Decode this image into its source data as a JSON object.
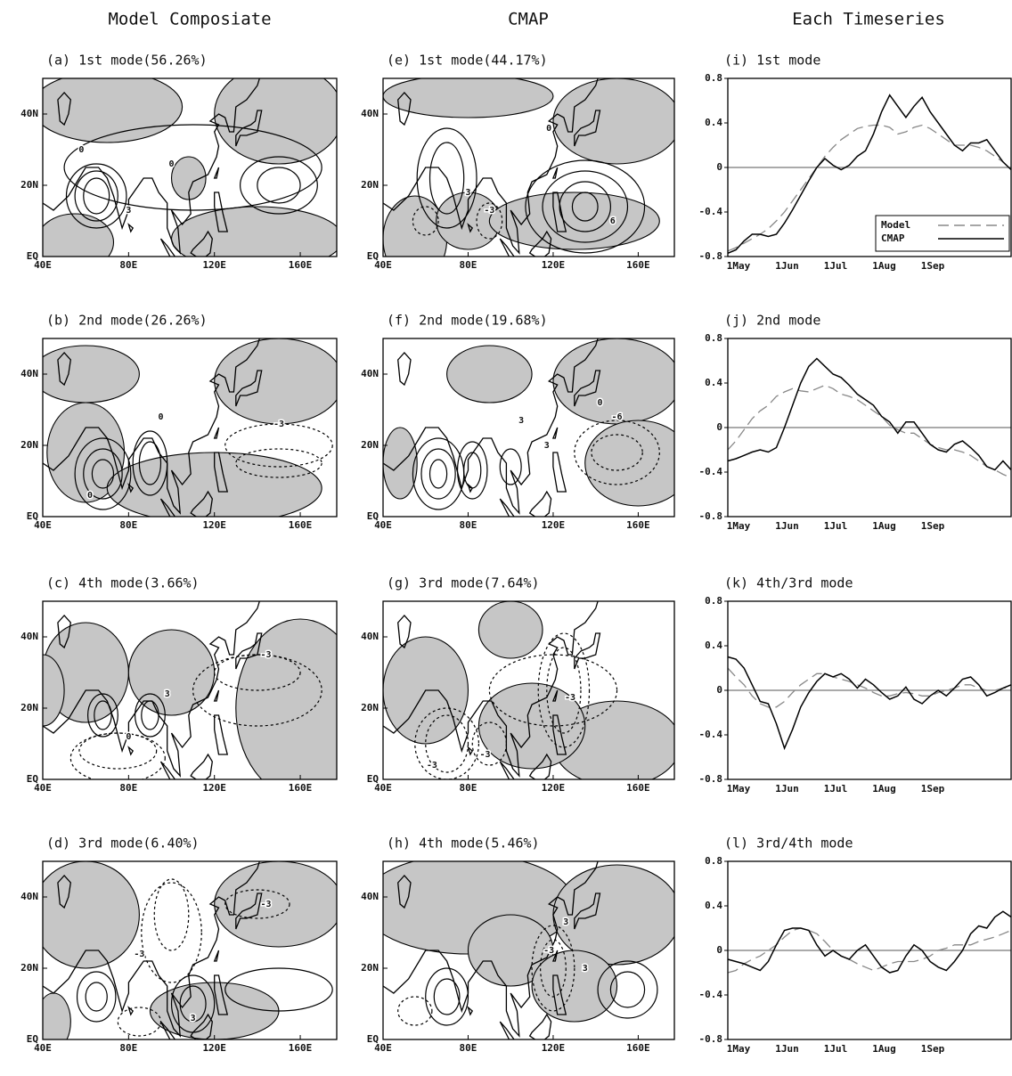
{
  "column_titles": [
    "Model Composiate",
    "CMAP",
    "Each Timeseries"
  ],
  "chart_data": [
    {
      "type": "map",
      "title": "(a) 1st mode(56.26%)",
      "xlim": [
        40,
        177
      ],
      "ylim": [
        0,
        50
      ],
      "xticks": [
        {
          "value": 40,
          "label": "40E"
        },
        {
          "value": 80,
          "label": "80E"
        },
        {
          "value": 120,
          "label": "120E"
        },
        {
          "value": 160,
          "label": "160E"
        }
      ],
      "yticks": [
        {
          "value": 0,
          "label": "EQ"
        },
        {
          "value": 20,
          "label": "20N"
        },
        {
          "value": 40,
          "label": "40N"
        }
      ],
      "shading_color": "#c6c6c6",
      "contour_labels": [
        "0",
        "0",
        "3"
      ]
    },
    {
      "type": "map",
      "title": "(b) 2nd mode(26.26%)",
      "xlim": [
        40,
        177
      ],
      "ylim": [
        0,
        50
      ],
      "xticks": [
        {
          "value": 40,
          "label": "40E"
        },
        {
          "value": 80,
          "label": "80E"
        },
        {
          "value": 120,
          "label": "120E"
        },
        {
          "value": 160,
          "label": "160E"
        }
      ],
      "yticks": [
        {
          "value": 0,
          "label": "EQ"
        },
        {
          "value": 20,
          "label": "20N"
        },
        {
          "value": 40,
          "label": "40N"
        }
      ],
      "shading_color": "#c6c6c6",
      "contour_labels": [
        "-3",
        "0",
        "0"
      ]
    },
    {
      "type": "map",
      "title": "(c) 4th mode(3.66%)",
      "xlim": [
        40,
        177
      ],
      "ylim": [
        0,
        50
      ],
      "xticks": [
        {
          "value": 40,
          "label": "40E"
        },
        {
          "value": 80,
          "label": "80E"
        },
        {
          "value": 120,
          "label": "120E"
        },
        {
          "value": 160,
          "label": "160E"
        }
      ],
      "yticks": [
        {
          "value": 0,
          "label": "EQ"
        },
        {
          "value": 20,
          "label": "20N"
        },
        {
          "value": 40,
          "label": "40N"
        }
      ],
      "shading_color": "#c6c6c6",
      "contour_labels": [
        "-3",
        "0",
        "3"
      ]
    },
    {
      "type": "map",
      "title": "(d) 3rd mode(6.40%)",
      "xlim": [
        40,
        177
      ],
      "ylim": [
        0,
        50
      ],
      "xticks": [
        {
          "value": 40,
          "label": "40E"
        },
        {
          "value": 80,
          "label": "80E"
        },
        {
          "value": 120,
          "label": "120E"
        },
        {
          "value": 160,
          "label": "160E"
        }
      ],
      "yticks": [
        {
          "value": 0,
          "label": "EQ"
        },
        {
          "value": 20,
          "label": "20N"
        },
        {
          "value": 40,
          "label": "40N"
        }
      ],
      "shading_color": "#c6c6c6",
      "contour_labels": [
        "-3",
        "-3",
        "3"
      ]
    },
    {
      "type": "map",
      "title": "(e) 1st mode(44.17%)",
      "xlim": [
        40,
        177
      ],
      "ylim": [
        0,
        50
      ],
      "xticks": [
        {
          "value": 40,
          "label": "40E"
        },
        {
          "value": 80,
          "label": "80E"
        },
        {
          "value": 120,
          "label": "120E"
        },
        {
          "value": 160,
          "label": "160E"
        }
      ],
      "yticks": [
        {
          "value": 0,
          "label": "EQ"
        },
        {
          "value": 20,
          "label": "20N"
        },
        {
          "value": 40,
          "label": "40N"
        }
      ],
      "shading_color": "#c6c6c6",
      "contour_labels": [
        "0",
        "3",
        "-3",
        "6"
      ]
    },
    {
      "type": "map",
      "title": "(f) 2nd mode(19.68%)",
      "xlim": [
        40,
        177
      ],
      "ylim": [
        0,
        50
      ],
      "xticks": [
        {
          "value": 40,
          "label": "40E"
        },
        {
          "value": 80,
          "label": "80E"
        },
        {
          "value": 120,
          "label": "120E"
        },
        {
          "value": 160,
          "label": "160E"
        }
      ],
      "yticks": [
        {
          "value": 0,
          "label": "EQ"
        },
        {
          "value": 20,
          "label": "20N"
        },
        {
          "value": 40,
          "label": "40N"
        }
      ],
      "shading_color": "#c6c6c6",
      "contour_labels": [
        "3",
        "-6",
        "3",
        "0"
      ]
    },
    {
      "type": "map",
      "title": "(g) 3rd mode(7.64%)",
      "xlim": [
        40,
        177
      ],
      "ylim": [
        0,
        50
      ],
      "xticks": [
        {
          "value": 40,
          "label": "40E"
        },
        {
          "value": 80,
          "label": "80E"
        },
        {
          "value": 120,
          "label": "120E"
        },
        {
          "value": 160,
          "label": "160E"
        }
      ],
      "yticks": [
        {
          "value": 0,
          "label": "EQ"
        },
        {
          "value": 20,
          "label": "20N"
        },
        {
          "value": 40,
          "label": "40N"
        }
      ],
      "shading_color": "#c6c6c6",
      "contour_labels": [
        "-3",
        "-3",
        "-3"
      ]
    },
    {
      "type": "map",
      "title": "(h) 4th mode(5.46%)",
      "xlim": [
        40,
        177
      ],
      "ylim": [
        0,
        50
      ],
      "xticks": [
        {
          "value": 40,
          "label": "40E"
        },
        {
          "value": 80,
          "label": "80E"
        },
        {
          "value": 120,
          "label": "120E"
        },
        {
          "value": 160,
          "label": "160E"
        }
      ],
      "yticks": [
        {
          "value": 0,
          "label": "EQ"
        },
        {
          "value": 20,
          "label": "20N"
        },
        {
          "value": 40,
          "label": "40N"
        }
      ],
      "shading_color": "#c6c6c6",
      "contour_labels": [
        "3",
        "-3",
        "3"
      ]
    },
    {
      "type": "line",
      "title": "(i) 1st mode",
      "ylim": [
        -0.8,
        0.8
      ],
      "yticks": [
        -0.8,
        -0.4,
        0,
        0.4,
        0.8
      ],
      "zero_line": true,
      "legend": "lower right",
      "categories": [
        "1May",
        null,
        null,
        null,
        null,
        null,
        "1Jun",
        null,
        null,
        null,
        null,
        null,
        "1Jul",
        null,
        null,
        null,
        null,
        null,
        "1Aug",
        null,
        null,
        null,
        null,
        null,
        "1Sep",
        null,
        null,
        null,
        null,
        null,
        null,
        null,
        null,
        null,
        null,
        null
      ],
      "series": [
        {
          "name": "Model",
          "color": "#888888",
          "style": "dashed",
          "values": [
            -0.75,
            -0.72,
            -0.68,
            -0.64,
            -0.6,
            -0.55,
            -0.48,
            -0.4,
            -0.3,
            -0.2,
            -0.1,
            0.0,
            0.1,
            0.18,
            0.25,
            0.3,
            0.35,
            0.37,
            0.38,
            0.38,
            0.36,
            0.3,
            0.32,
            0.36,
            0.38,
            0.35,
            0.3,
            0.25,
            0.2,
            0.2,
            0.2,
            0.18,
            0.15,
            0.1,
            0.05,
            -0.02
          ]
        },
        {
          "name": "CMAP",
          "color": "#000000",
          "style": "solid",
          "values": [
            -0.77,
            -0.74,
            -0.66,
            -0.6,
            -0.6,
            -0.62,
            -0.6,
            -0.5,
            -0.38,
            -0.25,
            -0.12,
            0.0,
            0.08,
            0.02,
            -0.02,
            0.02,
            0.1,
            0.15,
            0.3,
            0.5,
            0.65,
            0.55,
            0.45,
            0.55,
            0.63,
            0.5,
            0.4,
            0.3,
            0.2,
            0.15,
            0.22,
            0.22,
            0.25,
            0.15,
            0.05,
            -0.02
          ]
        }
      ]
    },
    {
      "type": "line",
      "title": "(j) 2nd mode",
      "ylim": [
        -0.8,
        0.8
      ],
      "yticks": [
        -0.8,
        -0.4,
        0,
        0.4,
        0.8
      ],
      "zero_line": true,
      "categories": [
        "1May",
        null,
        null,
        null,
        null,
        null,
        "1Jun",
        null,
        null,
        null,
        null,
        null,
        "1Jul",
        null,
        null,
        null,
        null,
        null,
        "1Aug",
        null,
        null,
        null,
        null,
        null,
        "1Sep",
        null,
        null,
        null,
        null,
        null,
        null,
        null,
        null,
        null,
        null,
        null
      ],
      "series": [
        {
          "color": "#888888",
          "style": "dashed",
          "values": [
            -0.2,
            -0.12,
            -0.02,
            0.08,
            0.15,
            0.2,
            0.28,
            0.32,
            0.35,
            0.33,
            0.32,
            0.35,
            0.38,
            0.35,
            0.3,
            0.28,
            0.25,
            0.2,
            0.15,
            0.1,
            0.02,
            -0.02,
            -0.05,
            -0.05,
            -0.1,
            -0.15,
            -0.18,
            -0.2,
            -0.2,
            -0.22,
            -0.25,
            -0.3,
            -0.35,
            -0.38,
            -0.42,
            -0.45
          ]
        },
        {
          "color": "#000000",
          "style": "solid",
          "values": [
            -0.3,
            -0.28,
            -0.25,
            -0.22,
            -0.2,
            -0.22,
            -0.18,
            0.0,
            0.2,
            0.4,
            0.55,
            0.62,
            0.55,
            0.48,
            0.45,
            0.38,
            0.3,
            0.25,
            0.2,
            0.1,
            0.05,
            -0.05,
            0.05,
            0.05,
            -0.05,
            -0.15,
            -0.2,
            -0.22,
            -0.15,
            -0.12,
            -0.18,
            -0.25,
            -0.35,
            -0.38,
            -0.3,
            -0.38
          ]
        }
      ]
    },
    {
      "type": "line",
      "title": "(k) 4th/3rd mode",
      "ylim": [
        -0.8,
        0.8
      ],
      "yticks": [
        -0.8,
        -0.4,
        0,
        0.4,
        0.8
      ],
      "zero_line": true,
      "categories": [
        "1May",
        null,
        null,
        null,
        null,
        null,
        "1Jun",
        null,
        null,
        null,
        null,
        null,
        "1Jul",
        null,
        null,
        null,
        null,
        null,
        "1Aug",
        null,
        null,
        null,
        null,
        null,
        "1Sep",
        null,
        null,
        null,
        null,
        null,
        null,
        null,
        null,
        null,
        null,
        null
      ],
      "series": [
        {
          "color": "#888888",
          "style": "dashed",
          "values": [
            0.2,
            0.12,
            0.05,
            -0.05,
            -0.12,
            -0.15,
            -0.15,
            -0.1,
            -0.02,
            0.05,
            0.1,
            0.15,
            0.15,
            0.12,
            0.1,
            0.08,
            0.05,
            0.02,
            -0.02,
            -0.05,
            -0.05,
            -0.03,
            -0.02,
            -0.03,
            -0.05,
            -0.05,
            -0.02,
            0.0,
            0.02,
            0.05,
            0.05,
            0.02,
            0.0,
            0.0,
            0.02,
            0.03
          ]
        },
        {
          "color": "#000000",
          "style": "solid",
          "values": [
            0.3,
            0.28,
            0.2,
            0.05,
            -0.1,
            -0.12,
            -0.3,
            -0.52,
            -0.35,
            -0.15,
            -0.02,
            0.08,
            0.15,
            0.12,
            0.15,
            0.1,
            0.02,
            0.1,
            0.05,
            -0.02,
            -0.08,
            -0.05,
            0.03,
            -0.08,
            -0.12,
            -0.05,
            0.0,
            -0.05,
            0.02,
            0.1,
            0.12,
            0.05,
            -0.05,
            -0.02,
            0.02,
            0.05
          ]
        }
      ]
    },
    {
      "type": "line",
      "title": "(l) 3rd/4th mode",
      "ylim": [
        -0.8,
        0.8
      ],
      "yticks": [
        -0.8,
        -0.4,
        0,
        0.4,
        0.8
      ],
      "zero_line": true,
      "categories": [
        "1May",
        null,
        null,
        null,
        null,
        null,
        "1Jun",
        null,
        null,
        null,
        null,
        null,
        "1Jul",
        null,
        null,
        null,
        null,
        null,
        "1Aug",
        null,
        null,
        null,
        null,
        null,
        "1Sep",
        null,
        null,
        null,
        null,
        null,
        null,
        null,
        null,
        null,
        null,
        null
      ],
      "series": [
        {
          "color": "#888888",
          "style": "dashed",
          "values": [
            -0.2,
            -0.18,
            -0.12,
            -0.08,
            -0.05,
            0.0,
            0.05,
            0.12,
            0.18,
            0.2,
            0.18,
            0.15,
            0.08,
            0.0,
            -0.05,
            -0.08,
            -0.12,
            -0.15,
            -0.18,
            -0.15,
            -0.12,
            -0.1,
            -0.1,
            -0.1,
            -0.08,
            -0.05,
            0.0,
            0.02,
            0.05,
            0.05,
            0.05,
            0.08,
            0.1,
            0.12,
            0.15,
            0.18
          ]
        },
        {
          "color": "#000000",
          "style": "solid",
          "values": [
            -0.08,
            -0.1,
            -0.12,
            -0.15,
            -0.18,
            -0.1,
            0.05,
            0.18,
            0.2,
            0.2,
            0.18,
            0.05,
            -0.05,
            0.0,
            -0.05,
            -0.08,
            0.0,
            0.05,
            -0.05,
            -0.15,
            -0.2,
            -0.18,
            -0.05,
            0.05,
            0.0,
            -0.1,
            -0.15,
            -0.18,
            -0.1,
            0.0,
            0.15,
            0.22,
            0.2,
            0.3,
            0.35,
            0.3
          ]
        }
      ]
    }
  ]
}
